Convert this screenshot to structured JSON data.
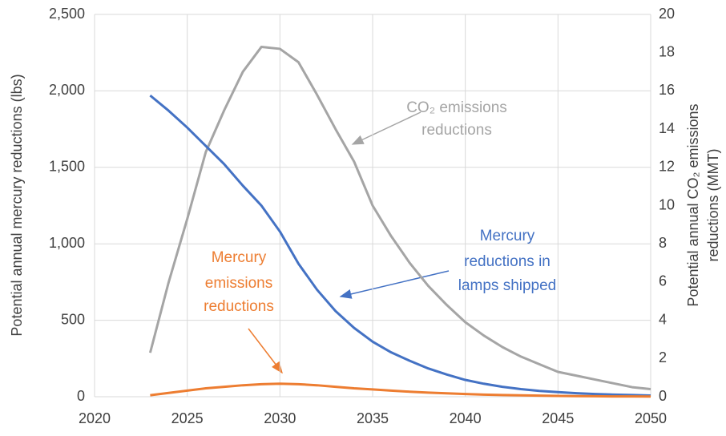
{
  "chart_data": {
    "type": "line",
    "ylabel": "Potential annual mercury reductions (lbs)",
    "y2label": [
      "Potential annual CO₂ emissions",
      "reductions (MMT)"
    ],
    "x": [
      2023,
      2024,
      2025,
      2026,
      2027,
      2028,
      2029,
      2030,
      2031,
      2032,
      2033,
      2034,
      2035,
      2036,
      2037,
      2038,
      2039,
      2040,
      2041,
      2042,
      2043,
      2044,
      2045,
      2046,
      2047,
      2048,
      2049,
      2050
    ],
    "series": [
      {
        "name": [
          "CO₂ emissions",
          "reductions"
        ],
        "color": "#a5a5a5",
        "axis": "y2",
        "values": [
          2.3,
          6,
          9.3,
          12.8,
          15,
          17,
          18.3,
          18.2,
          17.5,
          15.8,
          14,
          12.3,
          10,
          8.4,
          7,
          5.8,
          4.8,
          3.9,
          3.2,
          2.6,
          2.1,
          1.7,
          1.3,
          1.1,
          0.9,
          0.7,
          0.5,
          0.4
        ]
      },
      {
        "name": [
          "Mercury",
          "reductions in",
          "lamps shipped"
        ],
        "color": "#4472c4",
        "axis": "y",
        "values": [
          1970,
          1870,
          1760,
          1640,
          1520,
          1380,
          1250,
          1080,
          870,
          700,
          560,
          450,
          360,
          290,
          235,
          185,
          145,
          110,
          85,
          65,
          50,
          38,
          30,
          23,
          18,
          14,
          11,
          8
        ]
      },
      {
        "name": [
          "Mercury",
          "emissions",
          "reductions"
        ],
        "color": "#ed7d31",
        "axis": "y",
        "values": [
          10,
          25,
          40,
          55,
          65,
          75,
          82,
          85,
          82,
          75,
          65,
          55,
          48,
          40,
          33,
          27,
          22,
          18,
          14,
          11,
          9,
          7,
          5,
          4,
          3,
          2,
          2,
          1
        ]
      }
    ],
    "xlim": [
      2020,
      2050
    ],
    "xticks": [
      2020,
      2025,
      2030,
      2035,
      2040,
      2045,
      2050
    ],
    "ylim": [
      0,
      2500
    ],
    "yticks": [
      0,
      500,
      {
        "value": 1000,
        "label": "1,000"
      },
      {
        "value": 1500,
        "label": "1,500"
      },
      {
        "value": 2000,
        "label": "2,000"
      },
      {
        "value": 2500,
        "label": "2,500"
      }
    ],
    "y2lim": [
      0,
      20
    ],
    "y2ticks": [
      0,
      2,
      4,
      6,
      8,
      10,
      12,
      14,
      16,
      18,
      20
    ],
    "grid": true
  }
}
